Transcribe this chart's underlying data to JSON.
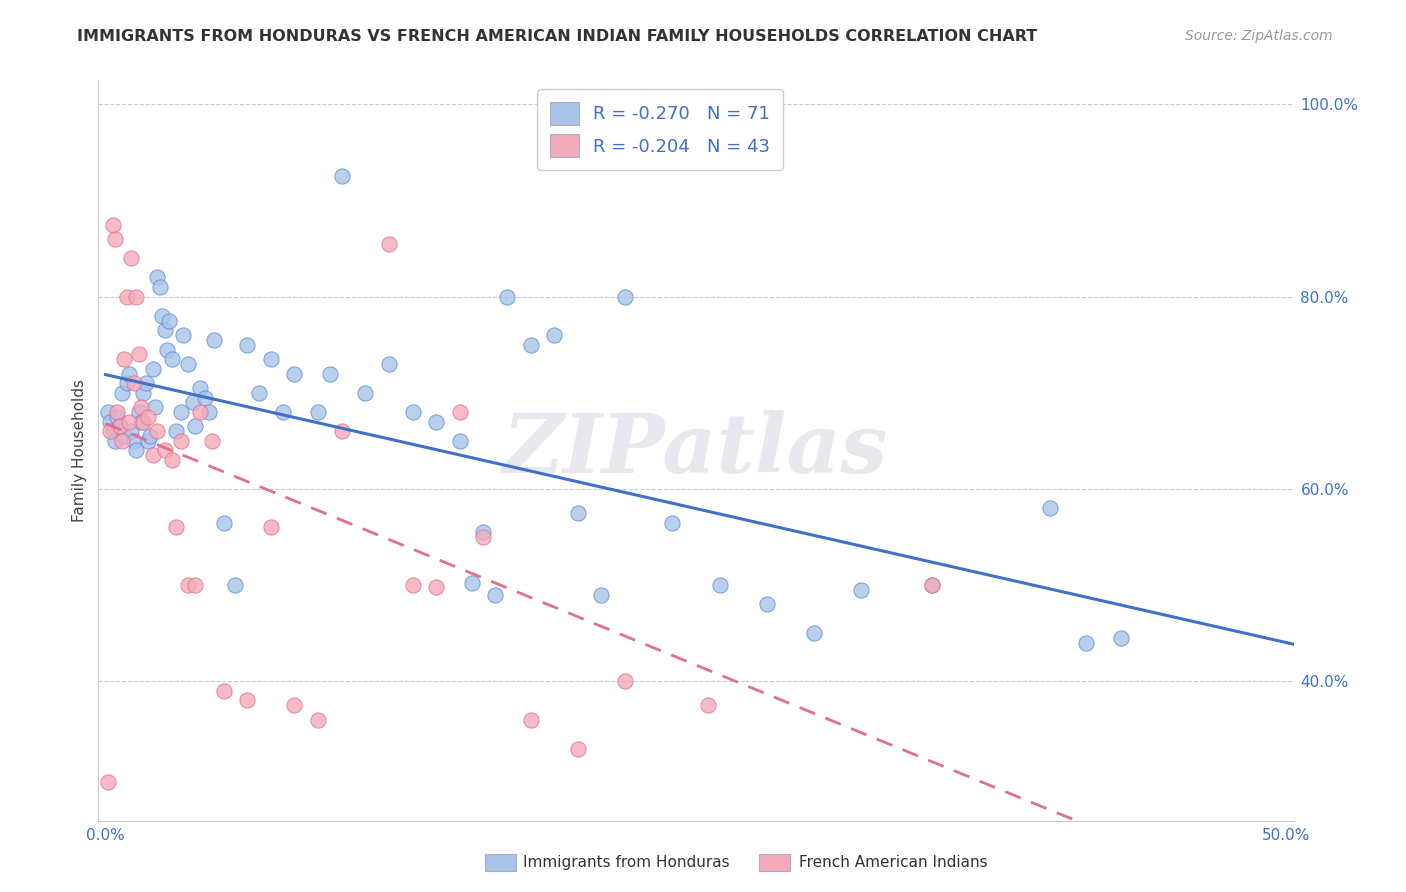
{
  "title": "IMMIGRANTS FROM HONDURAS VS FRENCH AMERICAN INDIAN FAMILY HOUSEHOLDS CORRELATION CHART",
  "source": "Source: ZipAtlas.com",
  "label_blue": "Immigrants from Honduras",
  "label_pink": "French American Indians",
  "ylabel": "Family Households",
  "xlim": [
    -0.003,
    0.503
  ],
  "ylim": [
    0.255,
    1.025
  ],
  "xtick_positions": [
    0.0,
    0.1,
    0.2,
    0.3,
    0.4,
    0.5
  ],
  "xticklabels": [
    "0.0%",
    "",
    "",
    "",
    "",
    "50.0%"
  ],
  "ytick_positions": [
    0.4,
    0.6,
    0.8,
    1.0
  ],
  "yticklabels": [
    "40.0%",
    "60.0%",
    "80.0%",
    "100.0%"
  ],
  "legend_r_blue": "-0.270",
  "legend_n_blue": "71",
  "legend_r_pink": "-0.204",
  "legend_n_pink": "43",
  "blue_fill": "#A8C4E8",
  "blue_edge": "#5B8DD9",
  "pink_fill": "#F4AABA",
  "pink_edge": "#E07090",
  "trend_blue": "#4070C8",
  "trend_pink": "#E07090",
  "tick_color": "#4070C8",
  "watermark": "ZIPatlas",
  "blue_x": [
    0.001,
    0.002,
    0.003,
    0.004,
    0.005,
    0.006,
    0.007,
    0.008,
    0.009,
    0.01,
    0.011,
    0.012,
    0.013,
    0.014,
    0.015,
    0.016,
    0.017,
    0.018,
    0.019,
    0.02,
    0.021,
    0.022,
    0.023,
    0.024,
    0.025,
    0.026,
    0.027,
    0.028,
    0.03,
    0.032,
    0.033,
    0.035,
    0.037,
    0.038,
    0.04,
    0.042,
    0.044,
    0.046,
    0.05,
    0.055,
    0.06,
    0.065,
    0.07,
    0.075,
    0.08,
    0.09,
    0.095,
    0.1,
    0.11,
    0.12,
    0.13,
    0.14,
    0.15,
    0.155,
    0.16,
    0.165,
    0.17,
    0.18,
    0.19,
    0.2,
    0.21,
    0.22,
    0.24,
    0.26,
    0.28,
    0.3,
    0.32,
    0.35,
    0.4,
    0.415,
    0.43
  ],
  "blue_y": [
    0.68,
    0.67,
    0.66,
    0.65,
    0.675,
    0.665,
    0.7,
    0.655,
    0.71,
    0.72,
    0.66,
    0.65,
    0.64,
    0.68,
    0.67,
    0.7,
    0.71,
    0.65,
    0.655,
    0.725,
    0.685,
    0.82,
    0.81,
    0.78,
    0.765,
    0.745,
    0.775,
    0.735,
    0.66,
    0.68,
    0.76,
    0.73,
    0.69,
    0.665,
    0.705,
    0.695,
    0.68,
    0.755,
    0.565,
    0.5,
    0.75,
    0.7,
    0.735,
    0.68,
    0.72,
    0.68,
    0.72,
    0.925,
    0.7,
    0.73,
    0.68,
    0.67,
    0.65,
    0.502,
    0.555,
    0.49,
    0.8,
    0.75,
    0.76,
    0.575,
    0.49,
    0.8,
    0.565,
    0.5,
    0.48,
    0.45,
    0.495,
    0.5,
    0.58,
    0.44,
    0.445
  ],
  "pink_x": [
    0.001,
    0.002,
    0.003,
    0.004,
    0.005,
    0.006,
    0.007,
    0.008,
    0.009,
    0.01,
    0.011,
    0.012,
    0.013,
    0.014,
    0.015,
    0.016,
    0.018,
    0.02,
    0.022,
    0.025,
    0.028,
    0.03,
    0.032,
    0.035,
    0.038,
    0.04,
    0.045,
    0.05,
    0.06,
    0.07,
    0.08,
    0.09,
    0.1,
    0.12,
    0.13,
    0.14,
    0.15,
    0.16,
    0.18,
    0.2,
    0.22,
    0.255,
    0.35
  ],
  "pink_y": [
    0.295,
    0.66,
    0.875,
    0.86,
    0.68,
    0.665,
    0.65,
    0.735,
    0.8,
    0.67,
    0.84,
    0.71,
    0.8,
    0.74,
    0.685,
    0.67,
    0.675,
    0.635,
    0.66,
    0.64,
    0.63,
    0.56,
    0.65,
    0.5,
    0.5,
    0.68,
    0.65,
    0.39,
    0.38,
    0.56,
    0.375,
    0.36,
    0.66,
    0.855,
    0.5,
    0.498,
    0.68,
    0.55,
    0.36,
    0.33,
    0.4,
    0.375,
    0.5
  ]
}
